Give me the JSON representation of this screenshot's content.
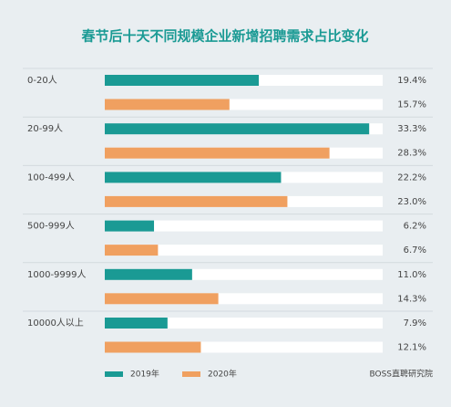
{
  "chart_data": {
    "type": "bar",
    "orientation": "horizontal",
    "title": "春节后十天不同规模企业新增招聘需求占比变化",
    "categories": [
      "0-20人",
      "20-99人",
      "100-499人",
      "500-999人",
      "1000-9999人",
      "10000人以上"
    ],
    "series": [
      {
        "name": "2019年",
        "color": "#1a9a94",
        "values": [
          19.4,
          33.3,
          22.2,
          6.2,
          11.0,
          7.9
        ],
        "value_labels": [
          "19.4%",
          "33.3%",
          "22.2%",
          "6.2%",
          "11.0%",
          "7.9%"
        ]
      },
      {
        "name": "2020年",
        "color": "#f0a060",
        "values": [
          15.7,
          28.3,
          23.0,
          6.7,
          14.3,
          12.1
        ],
        "value_labels": [
          "15.7%",
          "28.3%",
          "23.0%",
          "6.7%",
          "14.3%",
          "12.1%"
        ]
      }
    ],
    "xlim": [
      0,
      35
    ],
    "source": "BOSS直聘研究院"
  }
}
